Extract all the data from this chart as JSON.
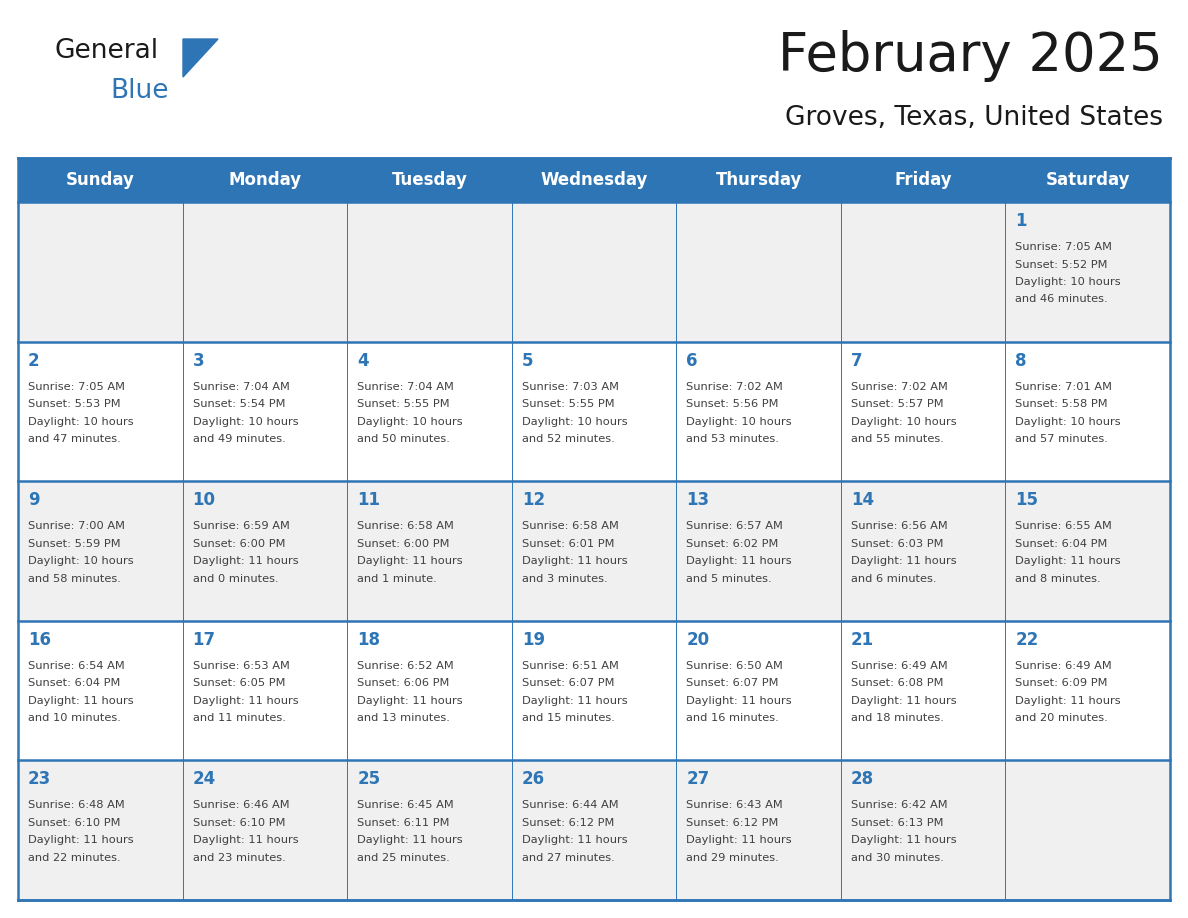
{
  "title": "February 2025",
  "subtitle": "Groves, Texas, United States",
  "header_bg": "#2E75B6",
  "header_text_color": "#FFFFFF",
  "cell_bg_odd": "#F0F0F0",
  "cell_bg_even": "#FFFFFF",
  "day_number_color": "#2E75B6",
  "info_text_color": "#404040",
  "border_color": "#2E75B6",
  "days_of_week": [
    "Sunday",
    "Monday",
    "Tuesday",
    "Wednesday",
    "Thursday",
    "Friday",
    "Saturday"
  ],
  "calendar_data": [
    [
      null,
      null,
      null,
      null,
      null,
      null,
      {
        "day": 1,
        "sunrise": "7:05 AM",
        "sunset": "5:52 PM",
        "daylight": "10 hours and 46 minutes."
      }
    ],
    [
      {
        "day": 2,
        "sunrise": "7:05 AM",
        "sunset": "5:53 PM",
        "daylight": "10 hours and 47 minutes."
      },
      {
        "day": 3,
        "sunrise": "7:04 AM",
        "sunset": "5:54 PM",
        "daylight": "10 hours and 49 minutes."
      },
      {
        "day": 4,
        "sunrise": "7:04 AM",
        "sunset": "5:55 PM",
        "daylight": "10 hours and 50 minutes."
      },
      {
        "day": 5,
        "sunrise": "7:03 AM",
        "sunset": "5:55 PM",
        "daylight": "10 hours and 52 minutes."
      },
      {
        "day": 6,
        "sunrise": "7:02 AM",
        "sunset": "5:56 PM",
        "daylight": "10 hours and 53 minutes."
      },
      {
        "day": 7,
        "sunrise": "7:02 AM",
        "sunset": "5:57 PM",
        "daylight": "10 hours and 55 minutes."
      },
      {
        "day": 8,
        "sunrise": "7:01 AM",
        "sunset": "5:58 PM",
        "daylight": "10 hours and 57 minutes."
      }
    ],
    [
      {
        "day": 9,
        "sunrise": "7:00 AM",
        "sunset": "5:59 PM",
        "daylight": "10 hours and 58 minutes."
      },
      {
        "day": 10,
        "sunrise": "6:59 AM",
        "sunset": "6:00 PM",
        "daylight": "11 hours and 0 minutes."
      },
      {
        "day": 11,
        "sunrise": "6:58 AM",
        "sunset": "6:00 PM",
        "daylight": "11 hours and 1 minute."
      },
      {
        "day": 12,
        "sunrise": "6:58 AM",
        "sunset": "6:01 PM",
        "daylight": "11 hours and 3 minutes."
      },
      {
        "day": 13,
        "sunrise": "6:57 AM",
        "sunset": "6:02 PM",
        "daylight": "11 hours and 5 minutes."
      },
      {
        "day": 14,
        "sunrise": "6:56 AM",
        "sunset": "6:03 PM",
        "daylight": "11 hours and 6 minutes."
      },
      {
        "day": 15,
        "sunrise": "6:55 AM",
        "sunset": "6:04 PM",
        "daylight": "11 hours and 8 minutes."
      }
    ],
    [
      {
        "day": 16,
        "sunrise": "6:54 AM",
        "sunset": "6:04 PM",
        "daylight": "11 hours and 10 minutes."
      },
      {
        "day": 17,
        "sunrise": "6:53 AM",
        "sunset": "6:05 PM",
        "daylight": "11 hours and 11 minutes."
      },
      {
        "day": 18,
        "sunrise": "6:52 AM",
        "sunset": "6:06 PM",
        "daylight": "11 hours and 13 minutes."
      },
      {
        "day": 19,
        "sunrise": "6:51 AM",
        "sunset": "6:07 PM",
        "daylight": "11 hours and 15 minutes."
      },
      {
        "day": 20,
        "sunrise": "6:50 AM",
        "sunset": "6:07 PM",
        "daylight": "11 hours and 16 minutes."
      },
      {
        "day": 21,
        "sunrise": "6:49 AM",
        "sunset": "6:08 PM",
        "daylight": "11 hours and 18 minutes."
      },
      {
        "day": 22,
        "sunrise": "6:49 AM",
        "sunset": "6:09 PM",
        "daylight": "11 hours and 20 minutes."
      }
    ],
    [
      {
        "day": 23,
        "sunrise": "6:48 AM",
        "sunset": "6:10 PM",
        "daylight": "11 hours and 22 minutes."
      },
      {
        "day": 24,
        "sunrise": "6:46 AM",
        "sunset": "6:10 PM",
        "daylight": "11 hours and 23 minutes."
      },
      {
        "day": 25,
        "sunrise": "6:45 AM",
        "sunset": "6:11 PM",
        "daylight": "11 hours and 25 minutes."
      },
      {
        "day": 26,
        "sunrise": "6:44 AM",
        "sunset": "6:12 PM",
        "daylight": "11 hours and 27 minutes."
      },
      {
        "day": 27,
        "sunrise": "6:43 AM",
        "sunset": "6:12 PM",
        "daylight": "11 hours and 29 minutes."
      },
      {
        "day": 28,
        "sunrise": "6:42 AM",
        "sunset": "6:13 PM",
        "daylight": "11 hours and 30 minutes."
      },
      null
    ]
  ],
  "title_fontsize": 38,
  "subtitle_fontsize": 19,
  "header_fontsize": 12,
  "day_number_fontsize": 12,
  "cell_text_fontsize": 8.2,
  "logo_general_fontsize": 19,
  "logo_blue_fontsize": 19
}
